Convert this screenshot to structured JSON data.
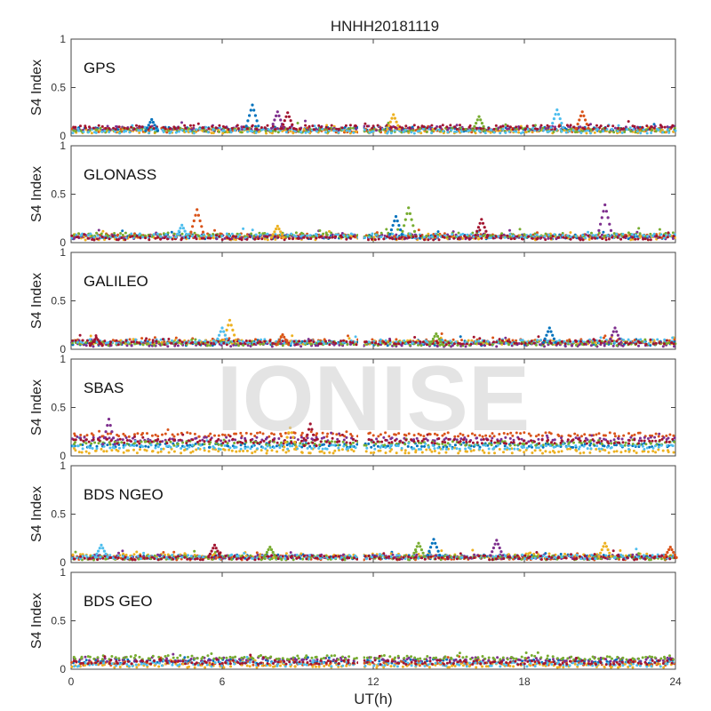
{
  "figure": {
    "title": "HNHH20181119",
    "xlabel": "UT(h)",
    "watermark": "IONISE"
  },
  "colors": {
    "series": [
      "#0072bd",
      "#d95319",
      "#edb120",
      "#7e2f8e",
      "#77ac30",
      "#4dbeee",
      "#a2142f"
    ],
    "panel_background": "#ffffff",
    "axis": "#444444"
  },
  "chart_data": {
    "type": "scatter",
    "xlim": [
      0,
      24
    ],
    "ylim": [
      0,
      1
    ],
    "xticks": [
      0,
      6,
      12,
      18,
      24
    ],
    "yticks": [
      0,
      0.5,
      1
    ],
    "ytick_labels": [
      "0",
      "0.5",
      "1"
    ],
    "data_gap": [
      11.4,
      11.6
    ],
    "grid": false,
    "legend": "none",
    "panels": [
      {
        "label": "GPS",
        "ylabel": "S4 Index",
        "baseline": [
          0.07,
          0.06,
          0.05,
          0.08,
          0.06,
          0.05,
          0.09
        ],
        "spikes": [
          [
            7.2,
            0.32
          ],
          [
            8.2,
            0.25
          ],
          [
            8.6,
            0.24
          ],
          [
            12.8,
            0.22
          ],
          [
            19.3,
            0.27
          ],
          [
            20.3,
            0.25
          ],
          [
            16.2,
            0.2
          ],
          [
            3.2,
            0.17
          ]
        ]
      },
      {
        "label": "GLONASS",
        "ylabel": "S4 Index",
        "baseline": [
          0.06,
          0.07,
          0.05,
          0.06,
          0.08,
          0.07,
          0.05
        ],
        "spikes": [
          [
            5.0,
            0.34
          ],
          [
            13.4,
            0.36
          ],
          [
            12.9,
            0.27
          ],
          [
            21.2,
            0.39
          ],
          [
            16.3,
            0.24
          ],
          [
            8.2,
            0.17
          ],
          [
            4.4,
            0.18
          ]
        ]
      },
      {
        "label": "GALILEO",
        "ylabel": "S4 Index",
        "baseline": [
          0.06,
          0.08,
          0.07,
          0.05,
          0.06,
          0.08,
          0.07
        ],
        "spikes": [
          [
            6.3,
            0.3
          ],
          [
            6.0,
            0.22
          ],
          [
            8.4,
            0.15
          ],
          [
            14.5,
            0.16
          ],
          [
            19.0,
            0.22
          ],
          [
            21.6,
            0.22
          ],
          [
            1.0,
            0.12
          ]
        ]
      },
      {
        "label": "SBAS",
        "ylabel": "S4 Index",
        "baseline": [
          0.11,
          0.22,
          0.05,
          0.17,
          0.13,
          0.09,
          0.15
        ],
        "spikes": [
          [
            1.5,
            0.38
          ],
          [
            9.5,
            0.33
          ],
          [
            8.7,
            0.29
          ]
        ]
      },
      {
        "label": "BDS NGEO",
        "ylabel": "S4 Index",
        "baseline": [
          0.06,
          0.05,
          0.07,
          0.06,
          0.05,
          0.06,
          0.05
        ],
        "spikes": [
          [
            13.8,
            0.2
          ],
          [
            14.4,
            0.24
          ],
          [
            16.9,
            0.23
          ],
          [
            5.7,
            0.18
          ],
          [
            21.2,
            0.2
          ],
          [
            1.2,
            0.18
          ],
          [
            23.8,
            0.16
          ],
          [
            7.9,
            0.16
          ]
        ]
      },
      {
        "label": "BDS GEO",
        "ylabel": "S4 Index",
        "baseline": [
          0.08,
          0.06,
          0.04,
          0.1,
          0.12,
          0.05,
          0.07
        ],
        "spikes": []
      }
    ]
  }
}
